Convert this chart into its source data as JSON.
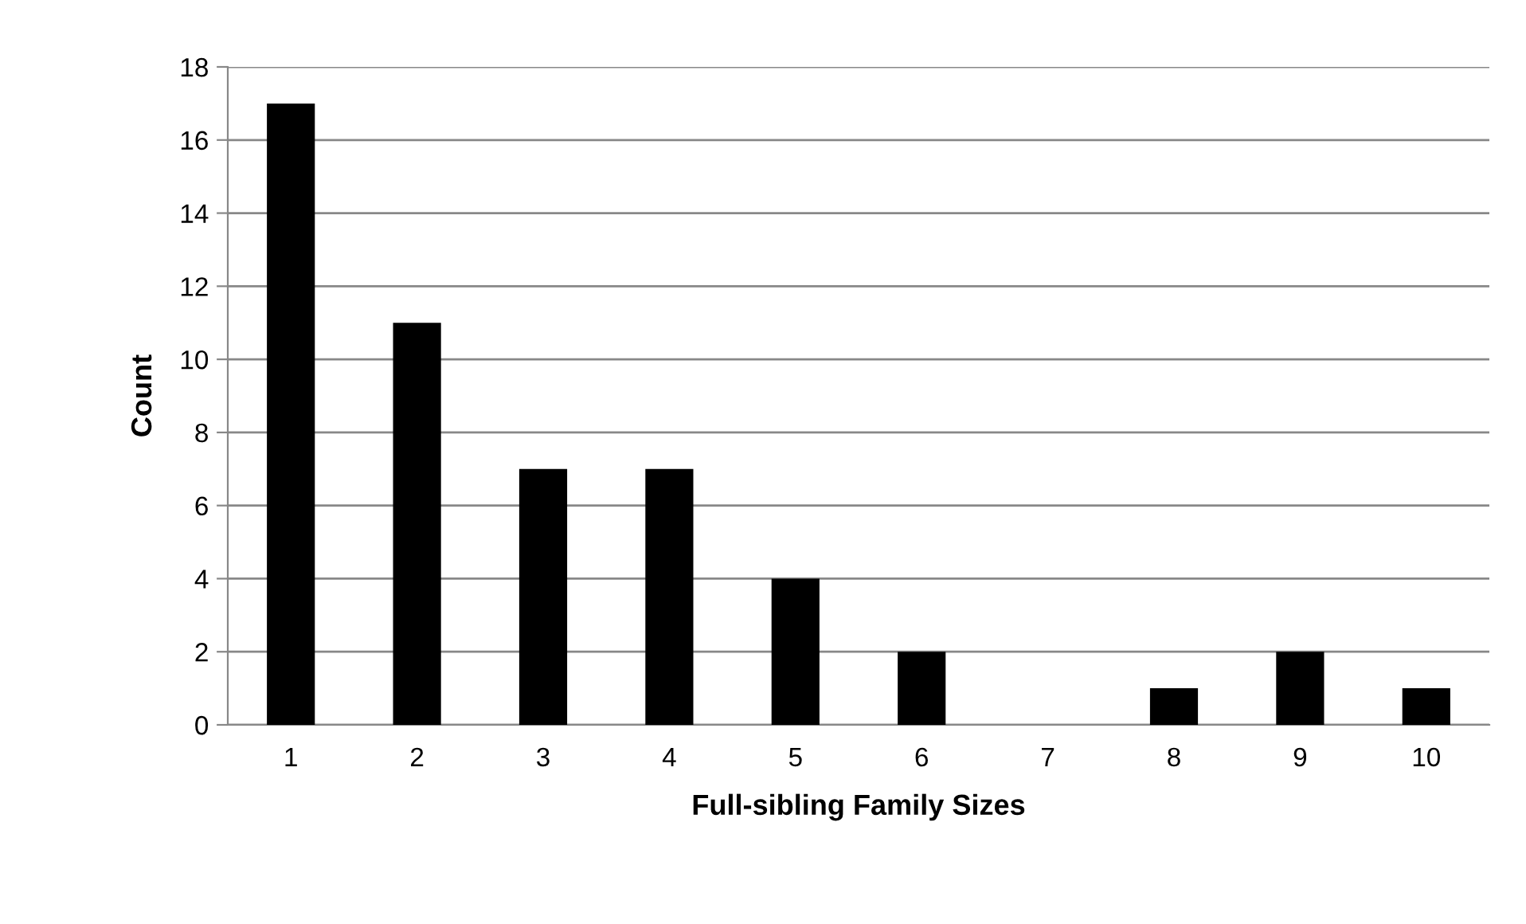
{
  "chart_data": {
    "type": "bar",
    "xlabel": "Full-sibling Family Sizes",
    "ylabel": "Count",
    "categories": [
      "1",
      "2",
      "3",
      "4",
      "5",
      "6",
      "7",
      "8",
      "9",
      "10"
    ],
    "values": [
      17,
      11,
      7,
      7,
      4,
      2,
      0,
      1,
      2,
      1
    ],
    "color": "#000000",
    "ylim": [
      0,
      18
    ],
    "yticks": [
      0,
      2,
      4,
      6,
      8,
      10,
      12,
      14,
      16,
      18
    ],
    "grid": "y",
    "legend": false
  }
}
